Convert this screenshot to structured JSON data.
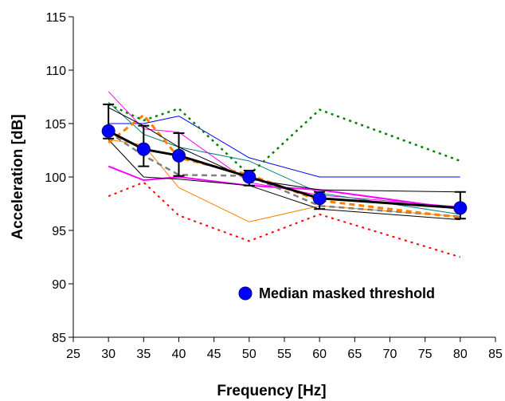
{
  "chart_data": {
    "type": "line",
    "title": "",
    "xlabel": "Frequency [Hz]",
    "ylabel": "Acceleration [dB]",
    "xlim": [
      25,
      85
    ],
    "ylim": [
      85,
      115
    ],
    "xticks": [
      25,
      30,
      35,
      40,
      45,
      50,
      55,
      60,
      65,
      70,
      75,
      80,
      85
    ],
    "yticks": [
      85,
      90,
      95,
      100,
      105,
      110,
      115
    ],
    "grid": false,
    "legend_position": "bottom-right",
    "legend": [
      {
        "label": "Median masked threshold",
        "color": "#0000ff"
      }
    ],
    "series": [
      {
        "color": "#ff00ff",
        "dash": "",
        "width": 1,
        "x": [
          30,
          35,
          40,
          50,
          60,
          80
        ],
        "y": [
          108.0,
          104.5,
          104.2,
          99.5,
          98.3,
          97.2
        ]
      },
      {
        "color": "#0000ff",
        "dash": "",
        "width": 1,
        "x": [
          30,
          35,
          40,
          50,
          60,
          80
        ],
        "y": [
          105.0,
          105.0,
          105.7,
          101.8,
          100.0,
          100.0
        ]
      },
      {
        "color": "#008080",
        "dash": "",
        "width": 1,
        "x": [
          30,
          35,
          40,
          50,
          60,
          80
        ],
        "y": [
          107.0,
          104.0,
          102.8,
          101.5,
          98.5,
          96.5
        ]
      },
      {
        "color": "#ff8000",
        "dash": "",
        "width": 1,
        "x": [
          30,
          35,
          40,
          50,
          60,
          80
        ],
        "y": [
          103.5,
          103.0,
          99.0,
          95.8,
          97.3,
          96.3
        ]
      },
      {
        "color": "#ff00ff",
        "dash": "",
        "width": 2,
        "x": [
          30,
          35,
          40,
          50,
          60,
          80
        ],
        "y": [
          101.0,
          99.7,
          100.0,
          99.2,
          98.8,
          97.0
        ]
      },
      {
        "color": "#808080",
        "dash": "7,5",
        "width": 2.5,
        "x": [
          30,
          35,
          40,
          50,
          60,
          80
        ],
        "y": [
          104.2,
          102.0,
          100.2,
          100.1,
          97.3,
          96.3
        ]
      },
      {
        "color": "#000000",
        "dash": "",
        "width": 1,
        "x": [
          30,
          35,
          40,
          50,
          60,
          80
        ],
        "y": [
          103.5,
          100.0,
          99.8,
          99.2,
          97.0,
          96.0
        ]
      },
      {
        "color": "#ff8000",
        "dash": "7,5",
        "width": 3,
        "x": [
          30,
          35,
          40,
          50,
          60,
          80
        ],
        "y": [
          103.2,
          105.8,
          101.8,
          100.2,
          97.8,
          96.2
        ]
      },
      {
        "color": "#008000",
        "dash": "3,5",
        "width": 2.5,
        "x": [
          30,
          35,
          40,
          50,
          60,
          80
        ],
        "y": [
          106.8,
          105.3,
          106.4,
          100.2,
          106.3,
          101.5
        ]
      },
      {
        "color": "#ff0000",
        "dash": "3,5",
        "width": 2,
        "x": [
          30,
          35,
          40,
          50,
          60,
          80
        ],
        "y": [
          98.2,
          99.5,
          96.4,
          94.0,
          96.5,
          92.5
        ]
      },
      {
        "color": "#000000",
        "dash": "",
        "width": 1,
        "x": [
          30,
          35,
          40,
          50,
          60,
          80
        ],
        "y": [
          106.5,
          104.8,
          102.8,
          99.8,
          98.8,
          98.6
        ]
      }
    ],
    "median": {
      "name": "Median masked threshold",
      "color": "#0000ff",
      "x": [
        30,
        35,
        40,
        50,
        60,
        80
      ],
      "y": [
        104.3,
        102.6,
        102.0,
        100.0,
        98.0,
        97.1
      ],
      "err_low": [
        103.6,
        101.0,
        100.1,
        99.2,
        97.0,
        96.1
      ],
      "err_high": [
        106.8,
        104.8,
        104.1,
        100.6,
        98.6,
        98.6
      ]
    }
  }
}
